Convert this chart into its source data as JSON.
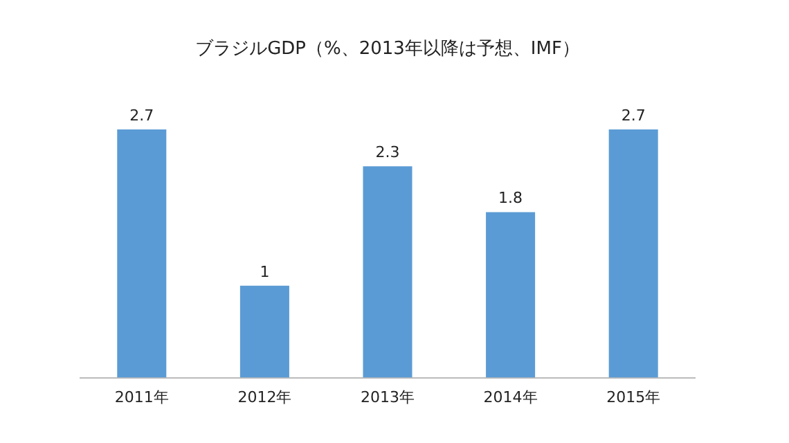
{
  "chart_data": {
    "type": "bar",
    "title": "ブラジルGDP（%、2013年以降は予想、IMF）",
    "categories": [
      "2011年",
      "2012年",
      "2013年",
      "2014年",
      "2015年"
    ],
    "values": [
      2.7,
      1,
      2.3,
      1.8,
      2.7
    ],
    "color": "#5b9bd5",
    "data_labels": true,
    "grid": false,
    "legend": false
  }
}
